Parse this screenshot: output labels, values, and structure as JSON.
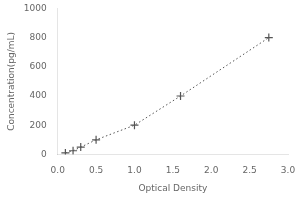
{
  "chart_data": {
    "type": "line",
    "x": [
      0.1,
      0.2,
      0.3,
      0.5,
      1.0,
      1.6,
      2.75
    ],
    "values": [
      10,
      25,
      50,
      100,
      200,
      400,
      800
    ],
    "xlim": [
      0,
      3
    ],
    "ylim": [
      0,
      1000
    ],
    "xticks": [
      {
        "value": 0,
        "label": "0.0"
      },
      0.5,
      {
        "value": 1,
        "label": "1.0"
      },
      1.5,
      {
        "value": 2,
        "label": "2.0"
      },
      2.5,
      {
        "value": 3,
        "label": "3.0"
      }
    ],
    "yticks": [
      0,
      200,
      400,
      600,
      800,
      1000
    ],
    "xlabel": "Optical Density",
    "ylabel": "Concentration(pg/mL)",
    "color": "#555555",
    "marker": "+",
    "line_style": "dotted",
    "grid": false
  }
}
